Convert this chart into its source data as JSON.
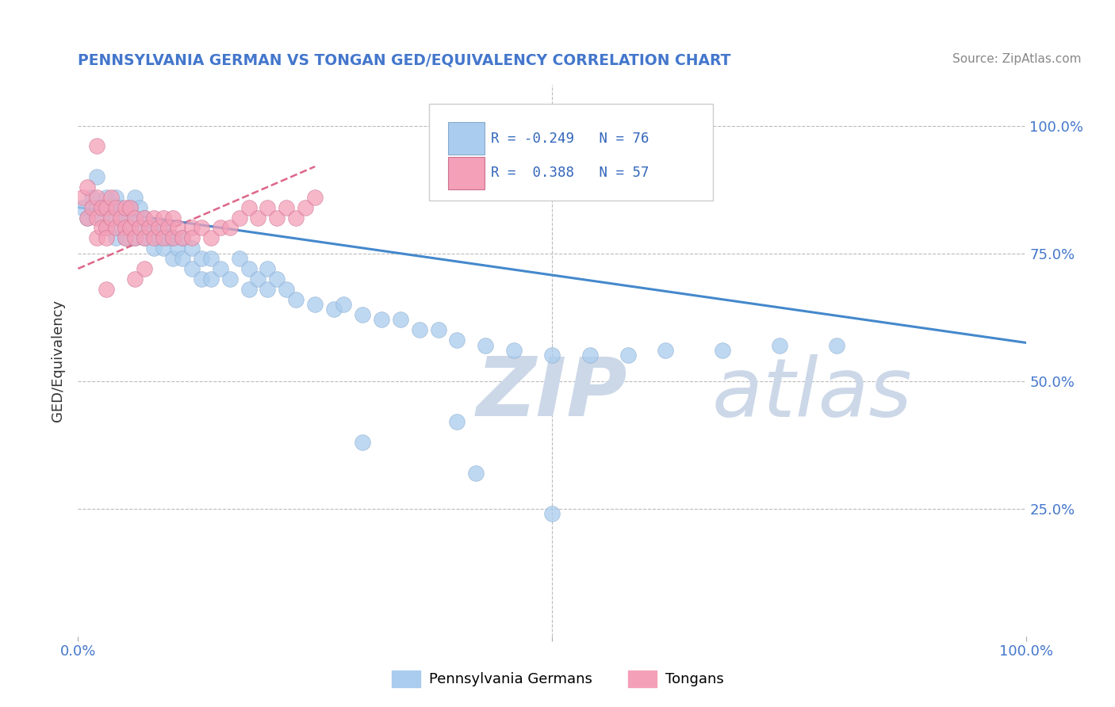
{
  "title": "PENNSYLVANIA GERMAN VS TONGAN GED/EQUIVALENCY CORRELATION CHART",
  "source_text": "Source: ZipAtlas.com",
  "ylabel": "GED/Equivalency",
  "x_tick_labels": [
    "0.0%",
    "100.0%"
  ],
  "y_tick_labels": [
    "25.0%",
    "50.0%",
    "75.0%",
    "100.0%"
  ],
  "x_tick_positions": [
    0.0,
    1.0
  ],
  "y_tick_positions": [
    0.25,
    0.5,
    0.75,
    1.0
  ],
  "legend_labels": [
    "Pennsylvania Germans",
    "Tongans"
  ],
  "blue_color": "#aaccee",
  "pink_color": "#f4a0b8",
  "blue_line_color": "#4488cc",
  "pink_line_color": "#dd6688",
  "background_color": "#ffffff",
  "watermark_color": "#ccd8e8",
  "grid_color": "#bbbbbb",
  "blue_scatter_x": [
    0.005,
    0.01,
    0.015,
    0.02,
    0.02,
    0.025,
    0.03,
    0.03,
    0.035,
    0.04,
    0.04,
    0.04,
    0.045,
    0.045,
    0.05,
    0.05,
    0.055,
    0.055,
    0.06,
    0.06,
    0.06,
    0.065,
    0.065,
    0.07,
    0.07,
    0.075,
    0.08,
    0.08,
    0.085,
    0.09,
    0.09,
    0.095,
    0.1,
    0.1,
    0.105,
    0.11,
    0.11,
    0.12,
    0.12,
    0.13,
    0.13,
    0.14,
    0.14,
    0.15,
    0.16,
    0.17,
    0.18,
    0.18,
    0.19,
    0.2,
    0.2,
    0.21,
    0.22,
    0.23,
    0.25,
    0.27,
    0.28,
    0.3,
    0.32,
    0.34,
    0.36,
    0.38,
    0.4,
    0.43,
    0.46,
    0.5,
    0.54,
    0.58,
    0.62,
    0.68,
    0.74,
    0.8,
    0.3,
    0.4,
    0.5,
    0.42
  ],
  "blue_scatter_y": [
    0.84,
    0.82,
    0.86,
    0.9,
    0.84,
    0.82,
    0.86,
    0.8,
    0.84,
    0.82,
    0.78,
    0.86,
    0.8,
    0.84,
    0.82,
    0.78,
    0.8,
    0.84,
    0.78,
    0.82,
    0.86,
    0.8,
    0.84,
    0.78,
    0.82,
    0.8,
    0.76,
    0.8,
    0.78,
    0.76,
    0.8,
    0.78,
    0.74,
    0.78,
    0.76,
    0.74,
    0.78,
    0.72,
    0.76,
    0.7,
    0.74,
    0.7,
    0.74,
    0.72,
    0.7,
    0.74,
    0.68,
    0.72,
    0.7,
    0.68,
    0.72,
    0.7,
    0.68,
    0.66,
    0.65,
    0.64,
    0.65,
    0.63,
    0.62,
    0.62,
    0.6,
    0.6,
    0.58,
    0.57,
    0.56,
    0.55,
    0.55,
    0.55,
    0.56,
    0.56,
    0.57,
    0.57,
    0.38,
    0.42,
    0.24,
    0.32
  ],
  "pink_scatter_x": [
    0.005,
    0.01,
    0.01,
    0.015,
    0.02,
    0.02,
    0.02,
    0.025,
    0.025,
    0.03,
    0.03,
    0.03,
    0.035,
    0.035,
    0.04,
    0.04,
    0.045,
    0.05,
    0.05,
    0.05,
    0.055,
    0.055,
    0.06,
    0.06,
    0.065,
    0.07,
    0.07,
    0.075,
    0.08,
    0.08,
    0.085,
    0.09,
    0.09,
    0.095,
    0.1,
    0.1,
    0.105,
    0.11,
    0.12,
    0.12,
    0.13,
    0.14,
    0.15,
    0.16,
    0.17,
    0.18,
    0.19,
    0.2,
    0.21,
    0.22,
    0.23,
    0.24,
    0.25,
    0.07,
    0.06,
    0.03,
    0.02
  ],
  "pink_scatter_y": [
    0.86,
    0.88,
    0.82,
    0.84,
    0.86,
    0.82,
    0.78,
    0.84,
    0.8,
    0.84,
    0.8,
    0.78,
    0.82,
    0.86,
    0.8,
    0.84,
    0.82,
    0.8,
    0.84,
    0.78,
    0.8,
    0.84,
    0.78,
    0.82,
    0.8,
    0.78,
    0.82,
    0.8,
    0.78,
    0.82,
    0.8,
    0.78,
    0.82,
    0.8,
    0.78,
    0.82,
    0.8,
    0.78,
    0.8,
    0.78,
    0.8,
    0.78,
    0.8,
    0.8,
    0.82,
    0.84,
    0.82,
    0.84,
    0.82,
    0.84,
    0.82,
    0.84,
    0.86,
    0.72,
    0.7,
    0.68,
    0.96
  ],
  "xlim": [
    0.0,
    1.0
  ],
  "ylim": [
    0.0,
    1.08
  ],
  "blue_trendline_x": [
    0.0,
    1.0
  ],
  "blue_trendline_y": [
    0.84,
    0.575
  ],
  "pink_trendline_x": [
    0.0,
    0.25
  ],
  "pink_trendline_y": [
    0.72,
    0.92
  ]
}
